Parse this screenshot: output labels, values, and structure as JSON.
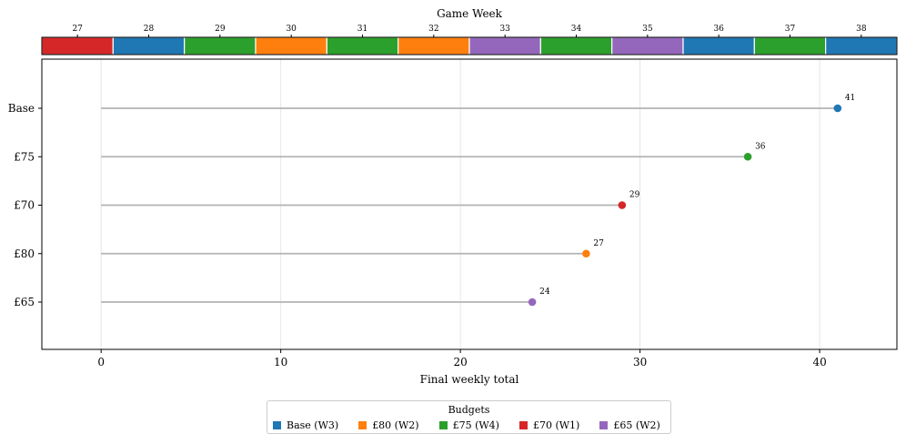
{
  "chart_data": {
    "type": "lollipop",
    "xlabel": "Final weekly total",
    "xlim": [
      -3.3,
      44.3
    ],
    "xticks": [
      0,
      10,
      20,
      30,
      40
    ],
    "grid": true,
    "rows": [
      {
        "label": "Base",
        "value": 41,
        "color": "#1f77b4"
      },
      {
        "label": "£75",
        "value": 36,
        "color": "#2ca02c"
      },
      {
        "label": "£70",
        "value": 29,
        "color": "#d62728"
      },
      {
        "label": "£80",
        "value": 27,
        "color": "#ff7f0e"
      },
      {
        "label": "£65",
        "value": 24,
        "color": "#9467bd"
      }
    ],
    "strip": {
      "title": "Game Week",
      "weeks": [
        {
          "label": "27",
          "color": "#d62728"
        },
        {
          "label": "28",
          "color": "#1f77b4"
        },
        {
          "label": "29",
          "color": "#2ca02c"
        },
        {
          "label": "30",
          "color": "#ff7f0e"
        },
        {
          "label": "31",
          "color": "#2ca02c"
        },
        {
          "label": "32",
          "color": "#ff7f0e"
        },
        {
          "label": "33",
          "color": "#9467bd"
        },
        {
          "label": "34",
          "color": "#2ca02c"
        },
        {
          "label": "35",
          "color": "#9467bd"
        },
        {
          "label": "36",
          "color": "#1f77b4"
        },
        {
          "label": "37",
          "color": "#2ca02c"
        },
        {
          "label": "38",
          "color": "#1f77b4"
        }
      ]
    },
    "legend": {
      "title": "Budgets",
      "placement": "bottom-center",
      "entries": [
        {
          "label": "Base (W3)",
          "color": "#1f77b4"
        },
        {
          "label": "£80 (W2)",
          "color": "#ff7f0e"
        },
        {
          "label": "£75 (W4)",
          "color": "#2ca02c"
        },
        {
          "label": "£70 (W1)",
          "color": "#d62728"
        },
        {
          "label": "£65 (W2)",
          "color": "#9467bd"
        }
      ]
    }
  }
}
